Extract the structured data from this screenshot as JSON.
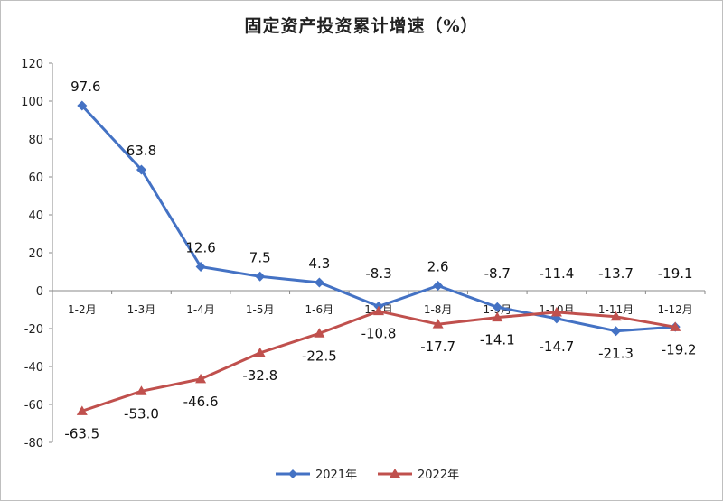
{
  "chart_data": {
    "type": "line",
    "title": "固定资产投资累计增速（%）",
    "categories": [
      "1-2月",
      "1-3月",
      "1-4月",
      "1-5月",
      "1-6月",
      "1-7月",
      "1-8月",
      "1-9月",
      "1-10月",
      "1-11月",
      "1-12月"
    ],
    "series": [
      {
        "name": "2021年",
        "color": "#4472c4",
        "marker": "diamond",
        "values": [
          97.6,
          63.8,
          12.6,
          7.5,
          4.3,
          -8.3,
          2.6,
          -8.7,
          -14.7,
          -21.3,
          -19.1
        ]
      },
      {
        "name": "2022年",
        "color": "#c0504d",
        "marker": "triangle",
        "values": [
          -63.5,
          -53.0,
          -46.6,
          -32.8,
          -22.5,
          -10.8,
          -17.7,
          -14.1,
          -11.4,
          -13.7,
          -19.2
        ]
      }
    ],
    "labels_2021": [
      "97.6",
      "63.8",
      "12.6",
      "7.5",
      "4.3",
      "-8.3",
      "2.6",
      "-8.7",
      "-14.7",
      "-21.3",
      "-19.1"
    ],
    "labels_2022": [
      "-63.5",
      "-53.0",
      "-46.6",
      "-32.8",
      "-22.5",
      "-10.8",
      "-17.7",
      "-14.1",
      "-11.4",
      "-13.7",
      "-19.2"
    ],
    "ylim": [
      -80,
      120
    ],
    "yticks": [
      120,
      100,
      80,
      60,
      40,
      20,
      0,
      -20,
      -40,
      -60,
      -80
    ],
    "legend": "bottom",
    "grid": false
  }
}
